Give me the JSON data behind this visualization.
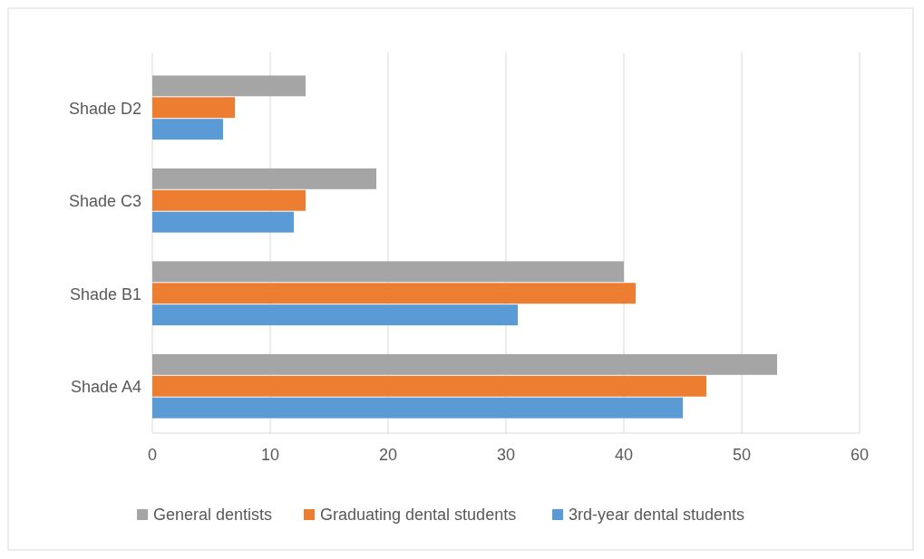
{
  "chart_data": {
    "type": "bar",
    "orientation": "horizontal",
    "categories": [
      "Shade D2",
      "Shade C3",
      "Shade B1",
      "Shade A4"
    ],
    "series": [
      {
        "name": "General dentists",
        "color": "#a5a5a5",
        "values": [
          13,
          19,
          40,
          53
        ]
      },
      {
        "name": "Graduating dental students",
        "color": "#ed7d31",
        "values": [
          7,
          13,
          41,
          47
        ]
      },
      {
        "name": "3rd-year dental students",
        "color": "#5b9bd5",
        "values": [
          6,
          12,
          31,
          45
        ]
      }
    ],
    "xlim": [
      0,
      60
    ],
    "xticks": [
      0,
      10,
      20,
      30,
      40,
      50,
      60
    ],
    "grid": "x",
    "legend": "bottom"
  }
}
